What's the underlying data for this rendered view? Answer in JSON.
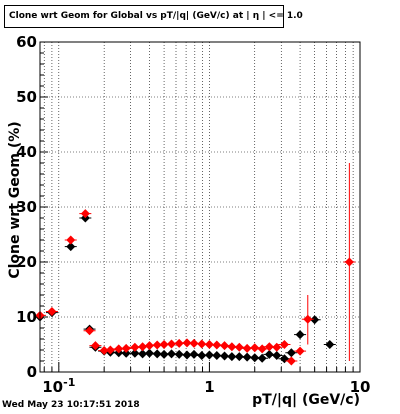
{
  "title": "Clone wrt Geom for Global vs pT/|q| (GeV/c) at | η | <= 1.0",
  "datestamp": "Wed May 23 10:17:51 2018",
  "colors": {
    "series1": "#000000",
    "series2": "#ff0000",
    "grid": "#000000"
  },
  "chart_data": {
    "type": "scatter",
    "title": "Clone wrt Geom for Global vs pT/|q| (GeV/c) at | η | <= 1.0",
    "xlabel": "pT/|q| (GeV/c)",
    "ylabel": "Clone wrt Geom (%)",
    "x_scale": "log",
    "xlim": [
      0.075,
      10
    ],
    "ylim": [
      0,
      60
    ],
    "x_ticks": [
      {
        "value": 0.1,
        "label": "10^-1"
      },
      {
        "value": 1,
        "label": "1"
      },
      {
        "value": 10,
        "label": "10"
      }
    ],
    "y_ticks": [
      0,
      10,
      20,
      30,
      40,
      50,
      60
    ],
    "grid": true,
    "series": [
      {
        "color": "#000000",
        "points": [
          {
            "x": 0.075,
            "y": 10.0
          },
          {
            "x": 0.09,
            "y": 10.8
          },
          {
            "x": 0.12,
            "y": 22.8
          },
          {
            "x": 0.15,
            "y": 28.0
          },
          {
            "x": 0.16,
            "y": 7.8
          },
          {
            "x": 0.175,
            "y": 4.5
          },
          {
            "x": 0.2,
            "y": 3.8
          },
          {
            "x": 0.22,
            "y": 3.6
          },
          {
            "x": 0.25,
            "y": 3.5
          },
          {
            "x": 0.28,
            "y": 3.4
          },
          {
            "x": 0.32,
            "y": 3.4
          },
          {
            "x": 0.36,
            "y": 3.3
          },
          {
            "x": 0.4,
            "y": 3.4
          },
          {
            "x": 0.45,
            "y": 3.3
          },
          {
            "x": 0.5,
            "y": 3.2
          },
          {
            "x": 0.56,
            "y": 3.3
          },
          {
            "x": 0.63,
            "y": 3.2
          },
          {
            "x": 0.71,
            "y": 3.1
          },
          {
            "x": 0.79,
            "y": 3.2
          },
          {
            "x": 0.89,
            "y": 3.0
          },
          {
            "x": 1.0,
            "y": 3.1
          },
          {
            "x": 1.12,
            "y": 3.0
          },
          {
            "x": 1.26,
            "y": 2.9
          },
          {
            "x": 1.41,
            "y": 2.8
          },
          {
            "x": 1.58,
            "y": 2.8
          },
          {
            "x": 1.78,
            "y": 2.7
          },
          {
            "x": 2.0,
            "y": 2.6
          },
          {
            "x": 2.24,
            "y": 2.5
          },
          {
            "x": 2.5,
            "y": 3.2
          },
          {
            "x": 2.8,
            "y": 3.0
          },
          {
            "x": 3.15,
            "y": 2.4
          },
          {
            "x": 3.5,
            "y": 3.5
          },
          {
            "x": 4.0,
            "y": 6.8
          },
          {
            "x": 5.0,
            "y": 9.5
          },
          {
            "x": 6.3,
            "y": 5.0
          }
        ]
      },
      {
        "color": "#ff0000",
        "points": [
          {
            "x": 0.075,
            "y": 10.3
          },
          {
            "x": 0.09,
            "y": 11.0
          },
          {
            "x": 0.12,
            "y": 24.0
          },
          {
            "x": 0.15,
            "y": 28.8
          },
          {
            "x": 0.16,
            "y": 7.5
          },
          {
            "x": 0.175,
            "y": 4.8
          },
          {
            "x": 0.2,
            "y": 3.9
          },
          {
            "x": 0.22,
            "y": 4.0
          },
          {
            "x": 0.25,
            "y": 4.2
          },
          {
            "x": 0.28,
            "y": 4.3
          },
          {
            "x": 0.32,
            "y": 4.5
          },
          {
            "x": 0.36,
            "y": 4.6
          },
          {
            "x": 0.4,
            "y": 4.8
          },
          {
            "x": 0.45,
            "y": 4.9
          },
          {
            "x": 0.5,
            "y": 5.0
          },
          {
            "x": 0.56,
            "y": 5.1
          },
          {
            "x": 0.63,
            "y": 5.2
          },
          {
            "x": 0.71,
            "y": 5.3
          },
          {
            "x": 0.79,
            "y": 5.2
          },
          {
            "x": 0.89,
            "y": 5.1
          },
          {
            "x": 1.0,
            "y": 5.0
          },
          {
            "x": 1.12,
            "y": 4.9
          },
          {
            "x": 1.26,
            "y": 4.8
          },
          {
            "x": 1.41,
            "y": 4.6
          },
          {
            "x": 1.58,
            "y": 4.5
          },
          {
            "x": 1.78,
            "y": 4.3
          },
          {
            "x": 2.0,
            "y": 4.4
          },
          {
            "x": 2.24,
            "y": 4.2
          },
          {
            "x": 2.5,
            "y": 4.6
          },
          {
            "x": 2.8,
            "y": 4.5
          },
          {
            "x": 3.15,
            "y": 5.0
          },
          {
            "x": 3.5,
            "y": 2.0
          },
          {
            "x": 4.0,
            "y": 3.8
          },
          {
            "x": 4.5,
            "y": 9.6
          },
          {
            "x": 8.5,
            "y": 20.0
          }
        ]
      }
    ]
  }
}
